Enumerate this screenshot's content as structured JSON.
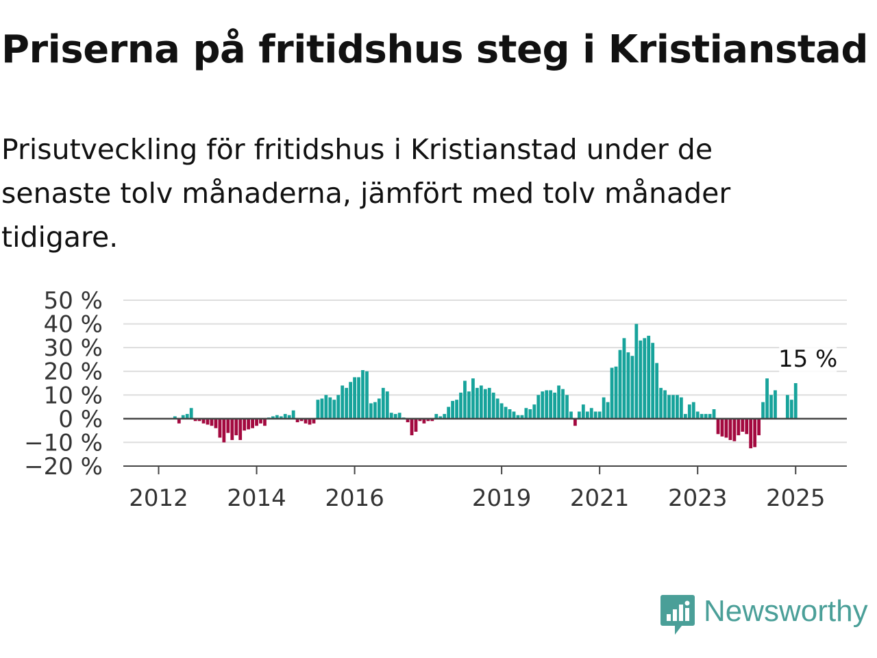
{
  "title": "Priserna på fritidshus steg i Kristianstad",
  "subtitle": "Prisutveckling för fritidshus i Kristianstad under de senaste tolv månaderna, jämfört med tolv månader tidigare.",
  "brand": {
    "name": "Newsworthy",
    "icon": "newsworthy-logo-icon",
    "color": "#4a9f98"
  },
  "chart_data": {
    "type": "bar",
    "title": "Priserna på fritidshus steg i Kristianstad",
    "xlabel": "",
    "ylabel": "",
    "ylim": [
      -20,
      50
    ],
    "y_ticks": [
      "50 %",
      "40 %",
      "30 %",
      "20 %",
      "10 %",
      "0 %",
      "−10 %",
      "−20 %"
    ],
    "y_tick_values": [
      50,
      40,
      30,
      20,
      10,
      0,
      -10,
      -20
    ],
    "x_ticks": [
      "2012",
      "2014",
      "2016",
      "2019",
      "2021",
      "2023",
      "2025"
    ],
    "x_tick_values": [
      "2012-01",
      "2014-01",
      "2016-01",
      "2019-01",
      "2021-01",
      "2023-01",
      "2025-01"
    ],
    "grid": true,
    "colors": {
      "positive": "#17a39b",
      "negative": "#a3093f",
      "grid": "#dddddd",
      "zero_line": "#444444"
    },
    "annotation": {
      "label": "15 %",
      "x": "2025-04",
      "value": 15
    },
    "start": "2012-05",
    "values": [
      1,
      -2,
      1.5,
      2,
      4.5,
      -1,
      -1,
      -2,
      -2.5,
      -3,
      -4,
      -8,
      -10,
      -6,
      -9,
      -7,
      -9,
      -5,
      -4.5,
      -4,
      -3,
      -2,
      -3,
      0.5,
      1,
      1.5,
      1,
      2,
      1.5,
      3.5,
      -1.5,
      -1,
      -2,
      -2.5,
      -2,
      8,
      8.5,
      10,
      9,
      8,
      10,
      14,
      13,
      15.5,
      17.5,
      17.5,
      20.5,
      20,
      6.5,
      7,
      8.5,
      13,
      11.5,
      2.5,
      2,
      2.5,
      0.5,
      -1.5,
      -7,
      -5.5,
      -1,
      -2,
      -1,
      -1,
      2,
      1,
      2,
      5,
      7.5,
      8,
      11,
      16,
      11.5,
      17,
      13,
      14,
      12.5,
      13,
      11,
      8.5,
      6.5,
      5,
      4,
      3,
      1.5,
      1.5,
      4.5,
      4,
      6,
      10,
      11.5,
      12,
      12,
      11,
      14,
      12.5,
      10,
      3,
      -3,
      3,
      6,
      3,
      4.5,
      3,
      3,
      9,
      7,
      21.5,
      22,
      29,
      34,
      28,
      26.5,
      40,
      33,
      34,
      35,
      32,
      23.5,
      13,
      12,
      10,
      10,
      10,
      9,
      2,
      6,
      7,
      3,
      2,
      2,
      2,
      4,
      -6.5,
      -7.5,
      -8,
      -9,
      -9.5,
      -7,
      -5.5,
      -6.5,
      -12.5,
      -12,
      -7,
      7,
      17,
      10,
      12,
      null,
      null,
      10,
      8,
      15
    ]
  }
}
